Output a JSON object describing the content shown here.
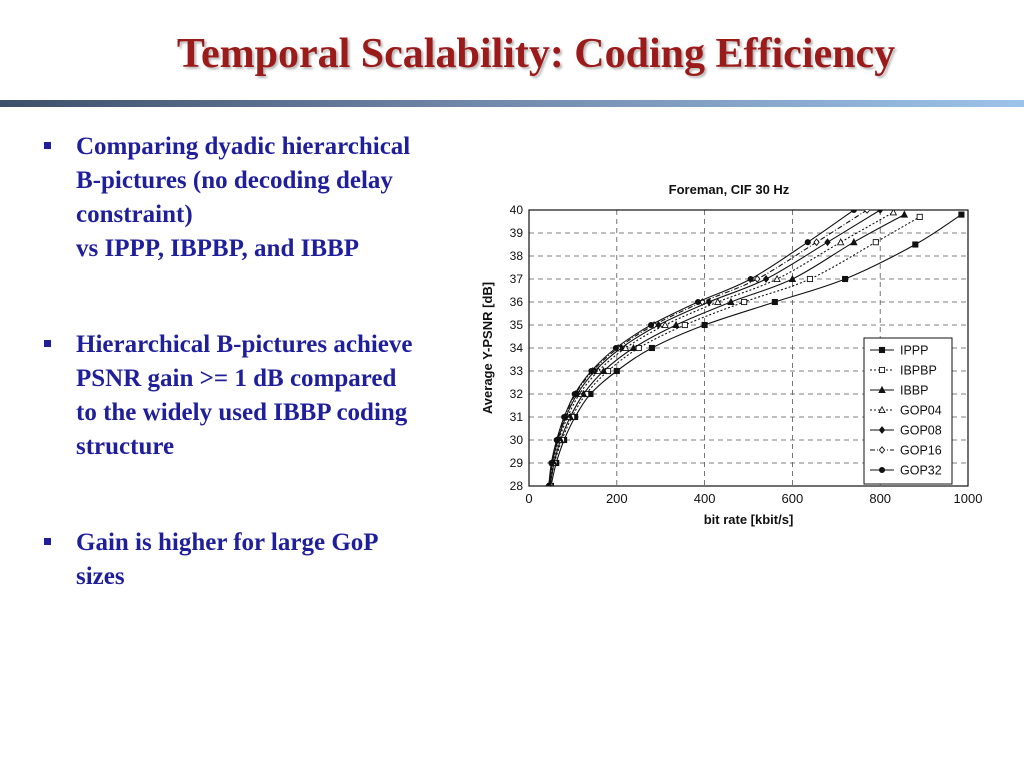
{
  "slide": {
    "title": "Temporal Scalability: Coding Efficiency"
  },
  "bullets": [
    {
      "lines": [
        "Comparing dyadic hierarchical",
        "B-pictures (no decoding delay",
        "constraint)",
        "vs IPPP, IBPBP, and IBBP"
      ]
    },
    {
      "lines": [
        "Hierarchical B-pictures achieve",
        "PSNR gain >= 1 dB compared",
        "to the widely used IBBP coding",
        "structure"
      ]
    },
    {
      "lines": [
        "Gain is higher for large GoP",
        "sizes"
      ]
    }
  ],
  "colors": {
    "title": "#9b1b1b",
    "bullet_text": "#1f1f9c",
    "series_line": "#111111"
  },
  "chart_data": {
    "type": "line",
    "title": "Foreman, CIF 30 Hz",
    "xlabel": "bit rate [kbit/s]",
    "ylabel": "Average Y-PSNR [dB]",
    "xlim": [
      0,
      1000
    ],
    "ylim": [
      28,
      40
    ],
    "xticks": [
      0,
      200,
      400,
      600,
      800,
      1000
    ],
    "yticks": [
      28,
      29,
      30,
      31,
      32,
      33,
      34,
      35,
      36,
      37,
      38,
      39,
      40
    ],
    "grid": true,
    "legend_position": "right",
    "series": [
      {
        "name": "IPPP",
        "marker": "square",
        "dash": "solid",
        "x": [
          50,
          62,
          80,
          105,
          140,
          200,
          280,
          400,
          560,
          720,
          880,
          985
        ],
        "y": [
          28,
          29,
          30,
          31,
          32,
          33,
          34,
          35,
          36,
          37,
          38.5,
          39.8
        ]
      },
      {
        "name": "IBPBP",
        "marker": "square-open",
        "dash": "dotted",
        "x": [
          48,
          58,
          75,
          98,
          130,
          180,
          250,
          355,
          490,
          640,
          790,
          890
        ],
        "y": [
          28,
          29,
          30,
          31,
          32,
          33,
          34,
          35,
          36,
          37,
          38.6,
          39.7
        ]
      },
      {
        "name": "IBBP",
        "marker": "triangle",
        "dash": "solid",
        "x": [
          48,
          57,
          72,
          94,
          124,
          170,
          238,
          335,
          460,
          600,
          740,
          855
        ],
        "y": [
          28,
          29,
          30,
          31,
          32,
          33,
          34,
          35,
          36,
          37,
          38.6,
          39.8
        ]
      },
      {
        "name": "GOP04",
        "marker": "triangle-open",
        "dash": "dotted",
        "x": [
          47,
          55,
          68,
          88,
          115,
          158,
          220,
          310,
          430,
          565,
          710,
          830
        ],
        "y": [
          28,
          29,
          30,
          31,
          32,
          33,
          34,
          35,
          36,
          37,
          38.6,
          39.9
        ]
      },
      {
        "name": "GOP08",
        "marker": "diamond",
        "dash": "solid",
        "x": [
          46,
          53,
          66,
          84,
          110,
          150,
          210,
          295,
          410,
          540,
          680,
          800
        ],
        "y": [
          28,
          29,
          30,
          31,
          32,
          33,
          34,
          35,
          36,
          37,
          38.6,
          40
        ]
      },
      {
        "name": "GOP16",
        "marker": "diamond-dot",
        "dash": "dashdot",
        "x": [
          45,
          52,
          64,
          82,
          106,
          145,
          203,
          285,
          395,
          520,
          655,
          770
        ],
        "y": [
          28,
          29,
          30,
          31,
          32,
          33,
          34,
          35,
          36,
          37,
          38.6,
          40
        ]
      },
      {
        "name": "GOP32",
        "marker": "circle",
        "dash": "solid",
        "x": [
          45,
          51,
          63,
          80,
          104,
          142,
          198,
          278,
          385,
          505,
          635,
          740
        ],
        "y": [
          28,
          29,
          30,
          31,
          32,
          33,
          34,
          35,
          36,
          37,
          38.6,
          40
        ]
      }
    ]
  }
}
